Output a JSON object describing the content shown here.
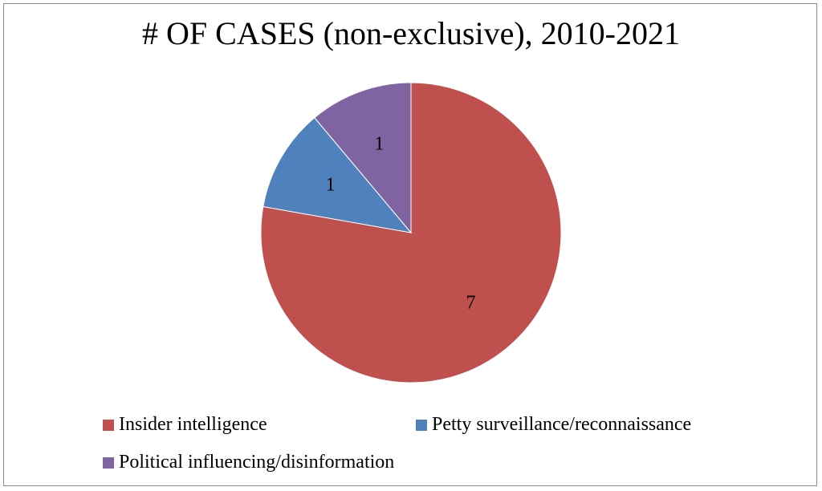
{
  "chart_data": {
    "type": "pie",
    "title": "# OF CASES (non-exclusive), 2010-2021",
    "slices": [
      {
        "label": "Insider intelligence",
        "value": 7,
        "color": "#c0504d"
      },
      {
        "label": "Petty surveillance/reconnaissance",
        "value": 1,
        "color": "#4f81bd"
      },
      {
        "label": "Political influencing/disinformation",
        "value": 1,
        "color": "#8064a2"
      }
    ],
    "legend_position": "bottom"
  }
}
